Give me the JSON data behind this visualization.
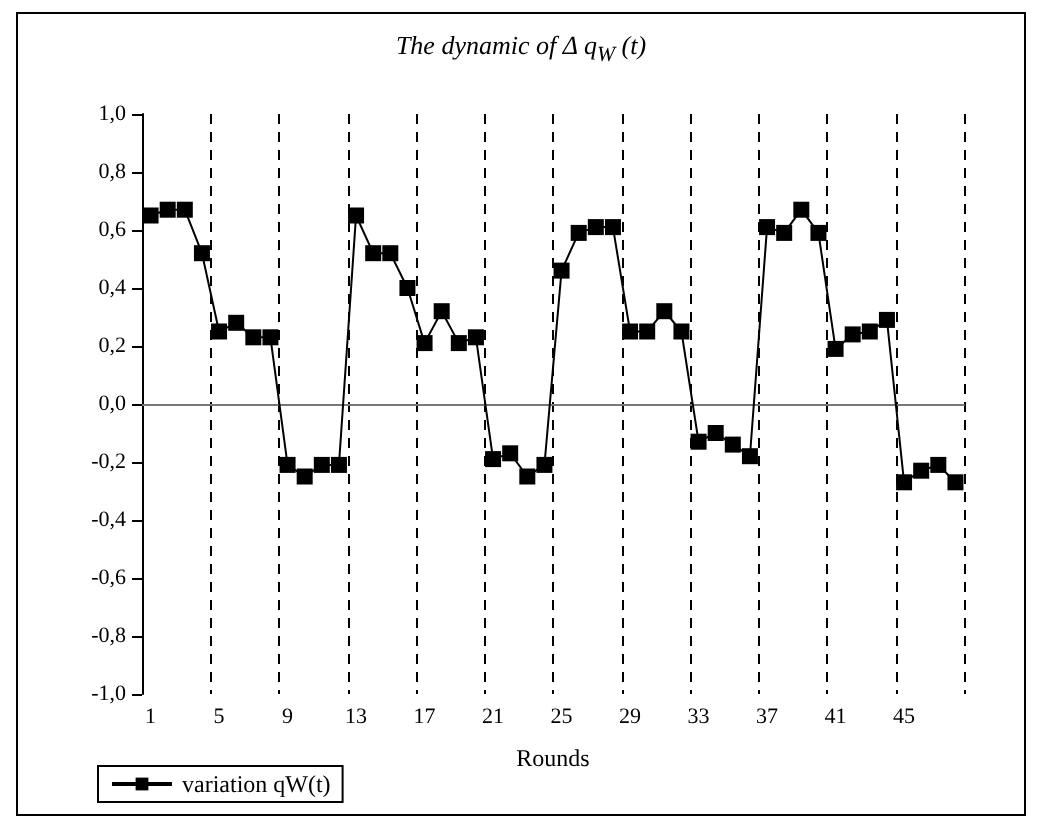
{
  "chart_data": {
    "type": "line",
    "title": "The dynamic of Δ q$_{W}$ (t)",
    "xlabel": "Rounds",
    "categories": [
      "1",
      null,
      null,
      null,
      "5",
      null,
      null,
      null,
      "9",
      null,
      null,
      null,
      "13",
      null,
      null,
      null,
      "17",
      null,
      null,
      null,
      "21",
      null,
      null,
      null,
      "25",
      null,
      null,
      null,
      "29",
      null,
      null,
      null,
      "33",
      null,
      null,
      null,
      "37",
      null,
      null,
      null,
      "41",
      null,
      null,
      null,
      "45",
      null,
      null,
      null
    ],
    "series": [
      {
        "name": "variation qW(t)",
        "color": "#000000",
        "values": [
          0.65,
          0.67,
          0.67,
          0.52,
          0.25,
          0.28,
          0.23,
          0.23,
          -0.21,
          -0.25,
          -0.21,
          -0.21,
          0.65,
          0.52,
          0.52,
          0.4,
          0.21,
          0.32,
          0.21,
          0.23,
          -0.19,
          -0.17,
          -0.25,
          -0.21,
          0.46,
          0.59,
          0.61,
          0.61,
          0.25,
          0.25,
          0.32,
          0.25,
          -0.13,
          -0.1,
          -0.14,
          -0.18,
          0.61,
          0.59,
          0.67,
          0.59,
          0.19,
          0.24,
          0.25,
          0.29,
          -0.27,
          -0.23,
          -0.21,
          -0.27
        ]
      }
    ],
    "ylim": [
      -1,
      1
    ],
    "yticks": [
      {
        "value": -1,
        "label": "-1,0"
      },
      {
        "value": -0.8,
        "label": "-0,8"
      },
      {
        "value": -0.6,
        "label": "-0,6"
      },
      {
        "value": -0.4,
        "label": "-0,4"
      },
      {
        "value": -0.2,
        "label": "-0,2"
      },
      {
        "value": 0,
        "label": "0,0"
      },
      {
        "value": 0.2,
        "label": "0,2"
      },
      {
        "value": 0.4,
        "label": "0,4"
      },
      {
        "value": 0.6,
        "label": "0,6"
      },
      {
        "value": 0.8,
        "label": "0,8"
      },
      {
        "value": 1,
        "label": "1,0"
      }
    ],
    "grid": "x",
    "legend": "bottom left",
    "marker": "square",
    "line_style": "solid"
  }
}
